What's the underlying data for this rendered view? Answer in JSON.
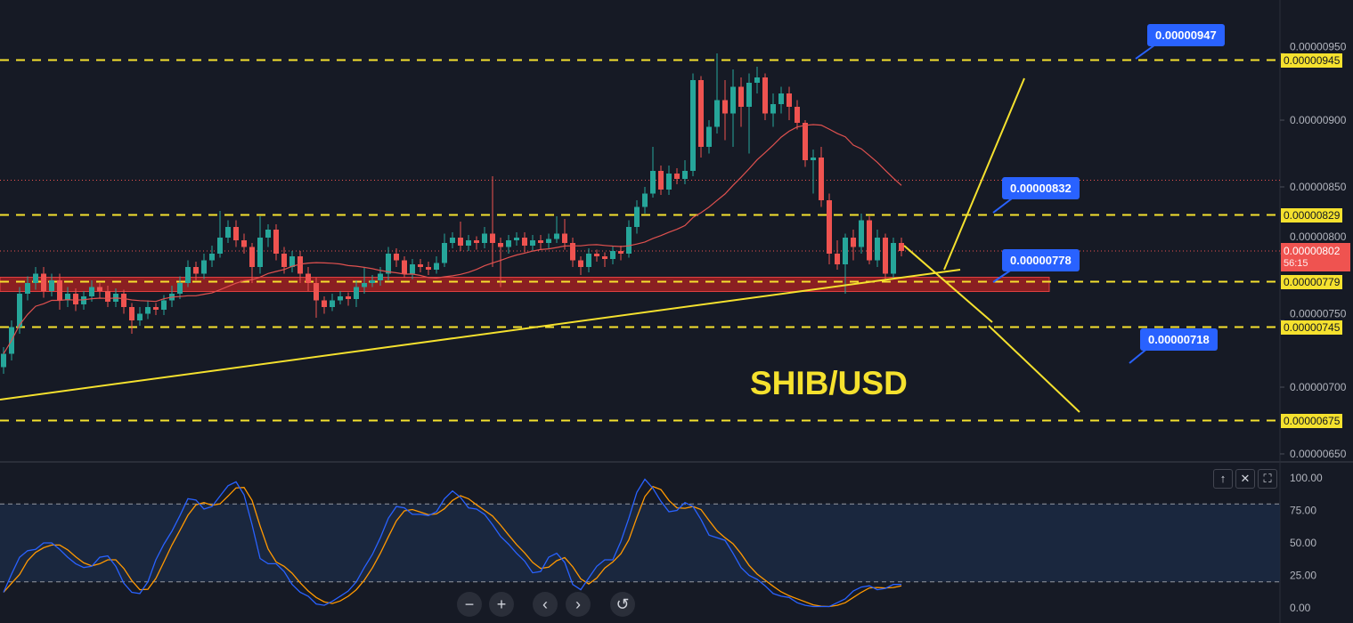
{
  "chart_data": [
    {
      "type": "candlestick",
      "title": "SHIB/USD",
      "ylim": [
        6.4e-06,
        9.6e-06
      ],
      "y_ticks": [
        "0.00000950",
        "0.00000900",
        "0.00000850",
        "0.00000800",
        "0.00000750",
        "0.00000700",
        "0.00000650"
      ],
      "open": [
        7.15e-06,
        7.25e-06,
        7.45e-06,
        7.7e-06,
        7.78e-06,
        7.85e-06,
        7.72e-06,
        7.8e-06,
        7.65e-06,
        7.7e-06,
        7.62e-06,
        7.68e-06,
        7.75e-06,
        7.72e-06,
        7.64e-06,
        7.7e-06,
        7.6e-06,
        7.5e-06,
        7.55e-06,
        7.6e-06,
        7.58e-06,
        7.65e-06,
        7.7e-06,
        7.78e-06,
        7.9e-06,
        7.85e-06,
        7.95e-06,
        8e-06,
        8.12e-06,
        8.2e-06,
        8.1e-06,
        8.05e-06,
        7.9e-06,
        8.12e-06,
        8.18e-06,
        8e-06,
        7.9e-06,
        7.98e-06,
        7.85e-06,
        7.78e-06,
        7.65e-06,
        7.6e-06,
        7.65e-06,
        7.68e-06,
        7.66e-06,
        7.75e-06,
        7.78e-06,
        7.8e-06,
        7.85e-06,
        8e-06,
        7.95e-06,
        7.85e-06,
        7.92e-06,
        7.9e-06,
        7.88e-06,
        7.93e-06,
        8.08e-06,
        8.12e-06,
        8.06e-06,
        8.1e-06,
        8.08e-06,
        8.15e-06,
        8.08e-06,
        8.05e-06,
        8.1e-06,
        8.12e-06,
        8.06e-06,
        8.1e-06,
        8.08e-06,
        8.11e-06,
        8.15e-06,
        8.08e-06,
        7.95e-06,
        7.9e-06,
        8e-06,
        7.98e-06,
        7.96e-06,
        8.02e-06,
        8e-06,
        8.2e-06,
        8.35e-06,
        8.45e-06,
        8.62e-06,
        8.48e-06,
        8.6e-06,
        8.56e-06,
        8.62e-06,
        9.3e-06,
        8.8e-06,
        8.95e-06,
        9.15e-06,
        9.05e-06,
        9.25e-06,
        9.1e-06,
        9.28e-06,
        9.32e-06,
        9.05e-06,
        9.12e-06,
        9.2e-06,
        9.1e-06,
        8.98e-06,
        8.7e-06,
        8.72e-06,
        8.4e-06,
        8e-06,
        7.92e-06,
        8.12e-06,
        8.05e-06,
        8.25e-06,
        7.95e-06,
        8.12e-06,
        7.85e-06,
        8.08e-06
      ],
      "high": [
        7.3e-06,
        7.5e-06,
        7.75e-06,
        7.83e-06,
        7.9e-06,
        7.9e-06,
        7.85e-06,
        7.85e-06,
        7.75e-06,
        7.74e-06,
        7.72e-06,
        7.8e-06,
        7.78e-06,
        7.76e-06,
        7.74e-06,
        7.73e-06,
        7.63e-06,
        7.6e-06,
        7.65e-06,
        7.63e-06,
        7.69e-06,
        7.76e-06,
        7.83e-06,
        7.95e-06,
        7.94e-06,
        8e-06,
        8.06e-06,
        8.32e-06,
        8.25e-06,
        8.25e-06,
        8.15e-06,
        8.08e-06,
        8.28e-06,
        8.22e-06,
        8.22e-06,
        8.05e-06,
        8.02e-06,
        8.02e-06,
        7.9e-06,
        7.82e-06,
        7.68e-06,
        7.7e-06,
        7.72e-06,
        7.71e-06,
        7.8e-06,
        7.9e-06,
        7.84e-06,
        7.9e-06,
        8.05e-06,
        8.04e-06,
        7.98e-06,
        7.96e-06,
        7.96e-06,
        7.94e-06,
        7.98e-06,
        8.15e-06,
        8.16e-06,
        8.24e-06,
        8.14e-06,
        8.13e-06,
        8.2e-06,
        8.58e-06,
        8.12e-06,
        8.14e-06,
        8.16e-06,
        8.16e-06,
        8.14e-06,
        8.14e-06,
        8.15e-06,
        8.28e-06,
        8.26e-06,
        8.12e-06,
        7.98e-06,
        8.04e-06,
        8.03e-06,
        8.01e-06,
        8.06e-06,
        8.06e-06,
        8.25e-06,
        8.4e-06,
        8.5e-06,
        8.8e-06,
        8.66e-06,
        8.66e-06,
        8.64e-06,
        8.7e-06,
        9.35e-06,
        9.33e-06,
        9e-06,
        9.5e-06,
        9.3e-06,
        9.38e-06,
        9.32e-06,
        9.35e-06,
        9.4e-06,
        9.35e-06,
        9.2e-06,
        9.25e-06,
        9.25e-06,
        9.15e-06,
        9e-06,
        8.78e-06,
        8.8e-06,
        8.45e-06,
        8.1e-06,
        8.15e-06,
        8.18e-06,
        8.3e-06,
        8.28e-06,
        8.18e-06,
        8.15e-06,
        8.12e-06,
        8.12e-06
      ],
      "low": [
        7.1e-06,
        7.2e-06,
        7.4e-06,
        7.65e-06,
        7.73e-06,
        7.67e-06,
        7.68e-06,
        7.58e-06,
        7.6e-06,
        7.57e-06,
        7.58e-06,
        7.64e-06,
        7.67e-06,
        7.6e-06,
        7.6e-06,
        7.55e-06,
        7.4e-06,
        7.46e-06,
        7.51e-06,
        7.54e-06,
        7.54e-06,
        7.6e-06,
        7.66e-06,
        7.75e-06,
        7.8e-06,
        7.81e-06,
        7.9e-06,
        7.97e-06,
        8.08e-06,
        8.05e-06,
        8e-06,
        7.78e-06,
        7.85e-06,
        8.05e-06,
        7.95e-06,
        7.85e-06,
        7.86e-06,
        7.78e-06,
        7.72e-06,
        7.52e-06,
        7.55e-06,
        7.57e-06,
        7.62e-06,
        7.61e-06,
        7.6e-06,
        7.7e-06,
        7.75e-06,
        7.76e-06,
        7.8e-06,
        7.9e-06,
        7.82e-06,
        7.81e-06,
        7.86e-06,
        7.84e-06,
        7.85e-06,
        7.9e-06,
        8.04e-06,
        8.02e-06,
        8.02e-06,
        8.03e-06,
        8.04e-06,
        7.9e-06,
        7.75e-06,
        8e-06,
        8.06e-06,
        8.01e-06,
        8.02e-06,
        8.03e-06,
        8.04e-06,
        8.08e-06,
        8.03e-06,
        7.9e-06,
        7.84e-06,
        7.86e-06,
        7.94e-06,
        7.9e-06,
        7.92e-06,
        7.95e-06,
        7.97e-06,
        8.15e-06,
        8.3e-06,
        8.42e-06,
        8.44e-06,
        8.44e-06,
        8.52e-06,
        8.52e-06,
        8.58e-06,
        8.72e-06,
        8.75e-06,
        8.9e-06,
        8.85e-06,
        8.8e-06,
        8.95e-06,
        8.75e-06,
        9.2e-06,
        9e-06,
        8.95e-06,
        9.05e-06,
        9e-06,
        8.93e-06,
        8.65e-06,
        8.45e-06,
        8.35e-06,
        7.92e-06,
        7.88e-06,
        7.7e-06,
        7.95e-06,
        8e-06,
        7.92e-06,
        7.9e-06,
        7.8e-06,
        7.82e-06,
        7.98e-06
      ],
      "close": [
        7.25e-06,
        7.45e-06,
        7.7e-06,
        7.78e-06,
        7.85e-06,
        7.72e-06,
        7.8e-06,
        7.65e-06,
        7.7e-06,
        7.62e-06,
        7.68e-06,
        7.75e-06,
        7.72e-06,
        7.64e-06,
        7.7e-06,
        7.6e-06,
        7.5e-06,
        7.55e-06,
        7.6e-06,
        7.58e-06,
        7.65e-06,
        7.7e-06,
        7.78e-06,
        7.9e-06,
        7.85e-06,
        7.95e-06,
        8e-06,
        8.12e-06,
        8.2e-06,
        8.1e-06,
        8.05e-06,
        7.9e-06,
        8.12e-06,
        8.18e-06,
        8e-06,
        7.9e-06,
        7.98e-06,
        7.85e-06,
        7.78e-06,
        7.65e-06,
        7.6e-06,
        7.65e-06,
        7.68e-06,
        7.66e-06,
        7.75e-06,
        7.78e-06,
        7.8e-06,
        7.85e-06,
        8e-06,
        7.95e-06,
        7.85e-06,
        7.92e-06,
        7.9e-06,
        7.88e-06,
        7.93e-06,
        8.08e-06,
        8.12e-06,
        8.06e-06,
        8.1e-06,
        8.08e-06,
        8.15e-06,
        8.08e-06,
        8.05e-06,
        8.1e-06,
        8.12e-06,
        8.06e-06,
        8.1e-06,
        8.08e-06,
        8.11e-06,
        8.15e-06,
        8.08e-06,
        7.95e-06,
        7.9e-06,
        8e-06,
        7.98e-06,
        7.96e-06,
        8.02e-06,
        8e-06,
        8.2e-06,
        8.35e-06,
        8.45e-06,
        8.62e-06,
        8.48e-06,
        8.6e-06,
        8.56e-06,
        8.62e-06,
        9.3e-06,
        8.8e-06,
        8.95e-06,
        9.15e-06,
        9.05e-06,
        9.25e-06,
        9.1e-06,
        9.28e-06,
        9.32e-06,
        9.05e-06,
        9.12e-06,
        9.2e-06,
        9.1e-06,
        8.98e-06,
        8.7e-06,
        8.72e-06,
        8.4e-06,
        8e-06,
        7.92e-06,
        8.12e-06,
        8.05e-06,
        8.25e-06,
        7.95e-06,
        8.12e-06,
        7.85e-06,
        8.08e-06,
        8.02e-06
      ],
      "moving_average_period": 20,
      "up_color": "#26a69a",
      "down_color": "#ef5350",
      "ma_color": "#e0514f",
      "last_price": "0.00000802",
      "countdown": "56:15",
      "high_marker_price": 8.55e-06,
      "horizontal_levels": [
        "0.00000945",
        "0.00000829",
        "0.00000779",
        "0.00000745",
        "0.00000675"
      ],
      "level_color": "#f5e12e",
      "support_zone": [
        7.73e-06,
        7.81e-06
      ],
      "support_zone_color": "#b22222",
      "callouts": [
        "0.00000947",
        "0.00000832",
        "0.00000778",
        "0.00000718"
      ],
      "callout_color": "#2962ff"
    },
    {
      "type": "line",
      "ylim": [
        0,
        100
      ],
      "y_ticks": [
        "100.00",
        "75.00",
        "50.00",
        "25.00",
        "0.00"
      ],
      "band": [
        20,
        80
      ],
      "k": [
        12,
        26,
        39,
        44,
        45,
        50,
        50,
        45,
        39,
        34,
        31,
        32,
        39,
        40,
        32,
        19,
        12,
        11,
        20,
        37,
        49,
        59,
        71,
        84,
        83,
        76,
        78,
        86,
        94,
        97,
        87,
        64,
        38,
        34,
        34,
        28,
        18,
        12,
        9,
        3,
        2,
        5,
        9,
        13,
        20,
        31,
        41,
        54,
        69,
        78,
        77,
        72,
        72,
        71,
        74,
        84,
        90,
        85,
        77,
        76,
        72,
        64,
        55,
        49,
        42,
        36,
        27,
        28,
        39,
        42,
        35,
        18,
        14,
        23,
        32,
        37,
        37,
        51,
        69,
        89,
        99,
        92,
        82,
        74,
        75,
        81,
        78,
        68,
        56,
        54,
        52,
        42,
        31,
        25,
        22,
        17,
        11,
        9,
        8,
        4,
        2,
        1,
        1,
        1,
        4,
        7,
        13,
        16,
        17,
        14,
        15,
        18,
        18
      ],
      "k_color": "#2962ff",
      "d_color": "#ff9800",
      "d_smoothing": 3
    }
  ],
  "pane_buttons": {
    "up": "↑",
    "close": "✕",
    "maximize": "⛶"
  },
  "nav_buttons": {
    "zoom_out": "−",
    "zoom_in": "+",
    "scroll_left": "‹",
    "scroll_right": "›",
    "reset": "↺"
  }
}
